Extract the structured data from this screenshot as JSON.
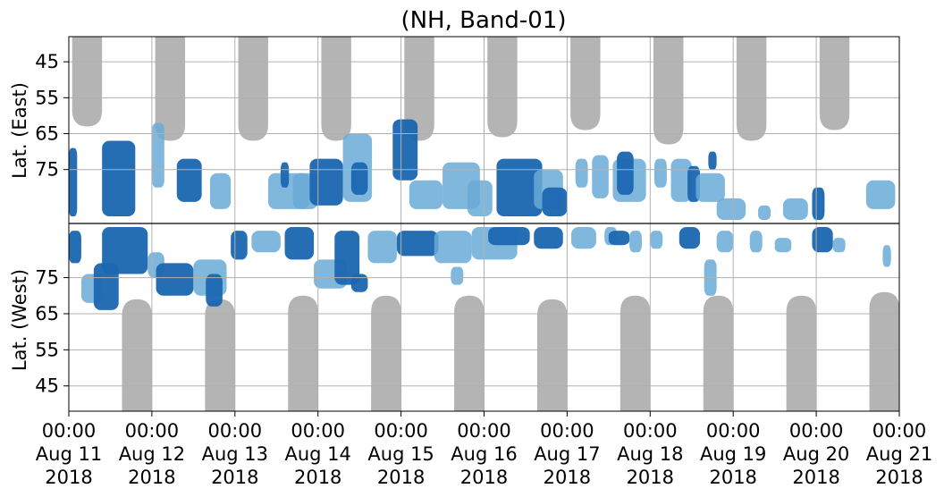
{
  "chart_data": {
    "type": "heatmap",
    "title": "(NH, Band-01)",
    "ylabel_east": "Lat. (East)",
    "ylabel_west": "Lat. (West)",
    "x_range_days": [
      0,
      10
    ],
    "east_lat_range": [
      90,
      38
    ],
    "west_lat_range": [
      90,
      38
    ],
    "east_ticks": [
      "45",
      "55",
      "65",
      "75"
    ],
    "east_tick_values": [
      45,
      55,
      65,
      75
    ],
    "west_ticks": [
      "75",
      "65",
      "55",
      "45"
    ],
    "west_tick_values": [
      75,
      65,
      55,
      45
    ],
    "x_ticks": [
      {
        "l1": "00:00",
        "l2": "Aug 11",
        "l3": "2018"
      },
      {
        "l1": "00:00",
        "l2": "Aug 12",
        "l3": "2018"
      },
      {
        "l1": "00:00",
        "l2": "Aug 13",
        "l3": "2018"
      },
      {
        "l1": "00:00",
        "l2": "Aug 14",
        "l3": "2018"
      },
      {
        "l1": "00:00",
        "l2": "Aug 15",
        "l3": "2018"
      },
      {
        "l1": "00:00",
        "l2": "Aug 16",
        "l3": "2018"
      },
      {
        "l1": "00:00",
        "l2": "Aug 17",
        "l3": "2018"
      },
      {
        "l1": "00:00",
        "l2": "Aug 18",
        "l3": "2018"
      },
      {
        "l1": "00:00",
        "l2": "Aug 19",
        "l3": "2018"
      },
      {
        "l1": "00:00",
        "l2": "Aug 20",
        "l3": "2018"
      },
      {
        "l1": "00:00",
        "l2": "Aug 21",
        "l3": "2018"
      }
    ],
    "colors": {
      "no_data": "#b4b4b4",
      "weak": "#6aaad6",
      "strong": "#1a66b0",
      "grid": "#b0b0b0"
    },
    "no_data_east": [
      {
        "t": 0.22,
        "lat": 63
      },
      {
        "t": 1.22,
        "lat": 67
      },
      {
        "t": 2.22,
        "lat": 67
      },
      {
        "t": 3.22,
        "lat": 67
      },
      {
        "t": 4.22,
        "lat": 67
      },
      {
        "t": 5.22,
        "lat": 66
      },
      {
        "t": 6.22,
        "lat": 64
      },
      {
        "t": 7.22,
        "lat": 68
      },
      {
        "t": 8.22,
        "lat": 67
      },
      {
        "t": 9.22,
        "lat": 64
      }
    ],
    "no_data_west": [
      {
        "t": 0.82,
        "lat": 69
      },
      {
        "t": 1.82,
        "lat": 69
      },
      {
        "t": 2.82,
        "lat": 70
      },
      {
        "t": 3.82,
        "lat": 70
      },
      {
        "t": 4.82,
        "lat": 70
      },
      {
        "t": 5.82,
        "lat": 69
      },
      {
        "t": 6.82,
        "lat": 70
      },
      {
        "t": 7.82,
        "lat": 70
      },
      {
        "t": 8.82,
        "lat": 70
      },
      {
        "t": 9.82,
        "lat": 71
      }
    ],
    "echo_regions_east": [
      {
        "t0": 0.0,
        "t1": 0.1,
        "lat_top": 69,
        "lat_bot": 88,
        "strength": "strong"
      },
      {
        "t0": 0.4,
        "t1": 0.8,
        "lat_top": 67,
        "lat_bot": 88,
        "strength": "strong"
      },
      {
        "t0": 1.0,
        "t1": 1.15,
        "lat_top": 62,
        "lat_bot": 80,
        "strength": "weak"
      },
      {
        "t0": 1.3,
        "t1": 1.6,
        "lat_top": 72,
        "lat_bot": 84,
        "strength": "strong"
      },
      {
        "t0": 1.7,
        "t1": 1.95,
        "lat_top": 76,
        "lat_bot": 86,
        "strength": "weak"
      },
      {
        "t0": 2.4,
        "t1": 2.9,
        "lat_top": 76,
        "lat_bot": 86,
        "strength": "weak"
      },
      {
        "t0": 2.55,
        "t1": 2.65,
        "lat_top": 73,
        "lat_bot": 80,
        "strength": "strong"
      },
      {
        "t0": 2.7,
        "t1": 3.0,
        "lat_top": 76,
        "lat_bot": 86,
        "strength": "weak"
      },
      {
        "t0": 2.9,
        "t1": 3.3,
        "lat_top": 72,
        "lat_bot": 85,
        "strength": "strong"
      },
      {
        "t0": 3.3,
        "t1": 3.65,
        "lat_top": 65,
        "lat_bot": 84,
        "strength": "weak"
      },
      {
        "t0": 3.4,
        "t1": 3.6,
        "lat_top": 73,
        "lat_bot": 82,
        "strength": "strong"
      },
      {
        "t0": 3.9,
        "t1": 4.2,
        "lat_top": 61,
        "lat_bot": 78,
        "strength": "strong"
      },
      {
        "t0": 4.1,
        "t1": 4.5,
        "lat_top": 78,
        "lat_bot": 86,
        "strength": "weak"
      },
      {
        "t0": 4.5,
        "t1": 4.95,
        "lat_top": 73,
        "lat_bot": 86,
        "strength": "weak"
      },
      {
        "t0": 4.8,
        "t1": 5.1,
        "lat_top": 78,
        "lat_bot": 88,
        "strength": "weak"
      },
      {
        "t0": 5.15,
        "t1": 5.7,
        "lat_top": 72,
        "lat_bot": 88,
        "strength": "strong"
      },
      {
        "t0": 5.6,
        "t1": 5.95,
        "lat_top": 75,
        "lat_bot": 86,
        "strength": "weak"
      },
      {
        "t0": 5.7,
        "t1": 6.0,
        "lat_top": 80,
        "lat_bot": 88,
        "strength": "strong"
      },
      {
        "t0": 6.1,
        "t1": 6.25,
        "lat_top": 72,
        "lat_bot": 80,
        "strength": "weak"
      },
      {
        "t0": 6.3,
        "t1": 6.5,
        "lat_top": 71,
        "lat_bot": 83,
        "strength": "weak"
      },
      {
        "t0": 6.55,
        "t1": 6.95,
        "lat_top": 72,
        "lat_bot": 84,
        "strength": "weak"
      },
      {
        "t0": 6.6,
        "t1": 6.8,
        "lat_top": 70,
        "lat_bot": 82,
        "strength": "strong"
      },
      {
        "t0": 7.05,
        "t1": 7.2,
        "lat_top": 72,
        "lat_bot": 80,
        "strength": "weak"
      },
      {
        "t0": 7.25,
        "t1": 7.5,
        "lat_top": 72,
        "lat_bot": 84,
        "strength": "weak"
      },
      {
        "t0": 7.45,
        "t1": 7.6,
        "lat_top": 74,
        "lat_bot": 84,
        "strength": "strong"
      },
      {
        "t0": 7.55,
        "t1": 7.9,
        "lat_top": 76,
        "lat_bot": 84,
        "strength": "weak"
      },
      {
        "t0": 7.7,
        "t1": 7.8,
        "lat_top": 70,
        "lat_bot": 75,
        "strength": "strong"
      },
      {
        "t0": 7.8,
        "t1": 8.15,
        "lat_top": 83,
        "lat_bot": 89,
        "strength": "weak"
      },
      {
        "t0": 8.3,
        "t1": 8.45,
        "lat_top": 85,
        "lat_bot": 89,
        "strength": "weak"
      },
      {
        "t0": 8.6,
        "t1": 8.9,
        "lat_top": 83,
        "lat_bot": 89,
        "strength": "weak"
      },
      {
        "t0": 8.95,
        "t1": 9.1,
        "lat_top": 80,
        "lat_bot": 89,
        "strength": "strong"
      },
      {
        "t0": 9.6,
        "t1": 9.95,
        "lat_top": 78,
        "lat_bot": 86,
        "strength": "weak"
      }
    ],
    "echo_regions_west": [
      {
        "t0": 0.0,
        "t1": 0.15,
        "lat_top": 88,
        "lat_bot": 79,
        "strength": "strong"
      },
      {
        "t0": 0.15,
        "t1": 0.4,
        "lat_top": 76,
        "lat_bot": 68,
        "strength": "weak"
      },
      {
        "t0": 0.3,
        "t1": 0.6,
        "lat_top": 79,
        "lat_bot": 66,
        "strength": "strong"
      },
      {
        "t0": 0.4,
        "t1": 0.95,
        "lat_top": 89,
        "lat_bot": 76,
        "strength": "strong"
      },
      {
        "t0": 0.95,
        "t1": 1.15,
        "lat_top": 82,
        "lat_bot": 75,
        "strength": "weak"
      },
      {
        "t0": 1.05,
        "t1": 1.5,
        "lat_top": 79,
        "lat_bot": 70,
        "strength": "strong"
      },
      {
        "t0": 1.5,
        "t1": 1.9,
        "lat_top": 80,
        "lat_bot": 70,
        "strength": "weak"
      },
      {
        "t0": 1.65,
        "t1": 1.85,
        "lat_top": 76,
        "lat_bot": 67,
        "strength": "strong"
      },
      {
        "t0": 1.95,
        "t1": 2.15,
        "lat_top": 88,
        "lat_bot": 80,
        "strength": "strong"
      },
      {
        "t0": 2.2,
        "t1": 2.55,
        "lat_top": 88,
        "lat_bot": 82,
        "strength": "weak"
      },
      {
        "t0": 2.6,
        "t1": 2.95,
        "lat_top": 89,
        "lat_bot": 80,
        "strength": "strong"
      },
      {
        "t0": 2.95,
        "t1": 3.35,
        "lat_top": 80,
        "lat_bot": 72,
        "strength": "weak"
      },
      {
        "t0": 3.2,
        "t1": 3.5,
        "lat_top": 88,
        "lat_bot": 73,
        "strength": "strong"
      },
      {
        "t0": 3.4,
        "t1": 3.6,
        "lat_top": 76,
        "lat_bot": 71,
        "strength": "strong"
      },
      {
        "t0": 3.6,
        "t1": 3.95,
        "lat_top": 88,
        "lat_bot": 79,
        "strength": "weak"
      },
      {
        "t0": 3.95,
        "t1": 4.45,
        "lat_top": 88,
        "lat_bot": 81,
        "strength": "strong"
      },
      {
        "t0": 4.4,
        "t1": 4.85,
        "lat_top": 88,
        "lat_bot": 79,
        "strength": "weak"
      },
      {
        "t0": 4.6,
        "t1": 4.75,
        "lat_top": 78,
        "lat_bot": 73,
        "strength": "weak"
      },
      {
        "t0": 4.85,
        "t1": 5.4,
        "lat_top": 89,
        "lat_bot": 80,
        "strength": "weak"
      },
      {
        "t0": 5.05,
        "t1": 5.55,
        "lat_top": 89,
        "lat_bot": 84,
        "strength": "strong"
      },
      {
        "t0": 5.6,
        "t1": 5.95,
        "lat_top": 89,
        "lat_bot": 83,
        "strength": "strong"
      },
      {
        "t0": 6.05,
        "t1": 6.35,
        "lat_top": 89,
        "lat_bot": 83,
        "strength": "weak"
      },
      {
        "t0": 6.45,
        "t1": 6.6,
        "lat_top": 89,
        "lat_bot": 84,
        "strength": "weak"
      },
      {
        "t0": 6.5,
        "t1": 6.75,
        "lat_top": 88,
        "lat_bot": 84,
        "strength": "strong"
      },
      {
        "t0": 6.75,
        "t1": 6.9,
        "lat_top": 88,
        "lat_bot": 82,
        "strength": "weak"
      },
      {
        "t0": 7.0,
        "t1": 7.15,
        "lat_top": 88,
        "lat_bot": 83,
        "strength": "weak"
      },
      {
        "t0": 7.35,
        "t1": 7.6,
        "lat_top": 89,
        "lat_bot": 83,
        "strength": "strong"
      },
      {
        "t0": 7.65,
        "t1": 7.8,
        "lat_top": 80,
        "lat_bot": 70,
        "strength": "weak"
      },
      {
        "t0": 7.8,
        "t1": 8.0,
        "lat_top": 88,
        "lat_bot": 82,
        "strength": "weak"
      },
      {
        "t0": 8.2,
        "t1": 8.35,
        "lat_top": 88,
        "lat_bot": 82,
        "strength": "weak"
      },
      {
        "t0": 8.5,
        "t1": 8.7,
        "lat_top": 86,
        "lat_bot": 82,
        "strength": "weak"
      },
      {
        "t0": 8.95,
        "t1": 9.2,
        "lat_top": 89,
        "lat_bot": 82,
        "strength": "strong"
      },
      {
        "t0": 9.2,
        "t1": 9.35,
        "lat_top": 86,
        "lat_bot": 82,
        "strength": "weak"
      },
      {
        "t0": 9.8,
        "t1": 9.9,
        "lat_top": 84,
        "lat_bot": 78,
        "strength": "weak"
      }
    ]
  }
}
